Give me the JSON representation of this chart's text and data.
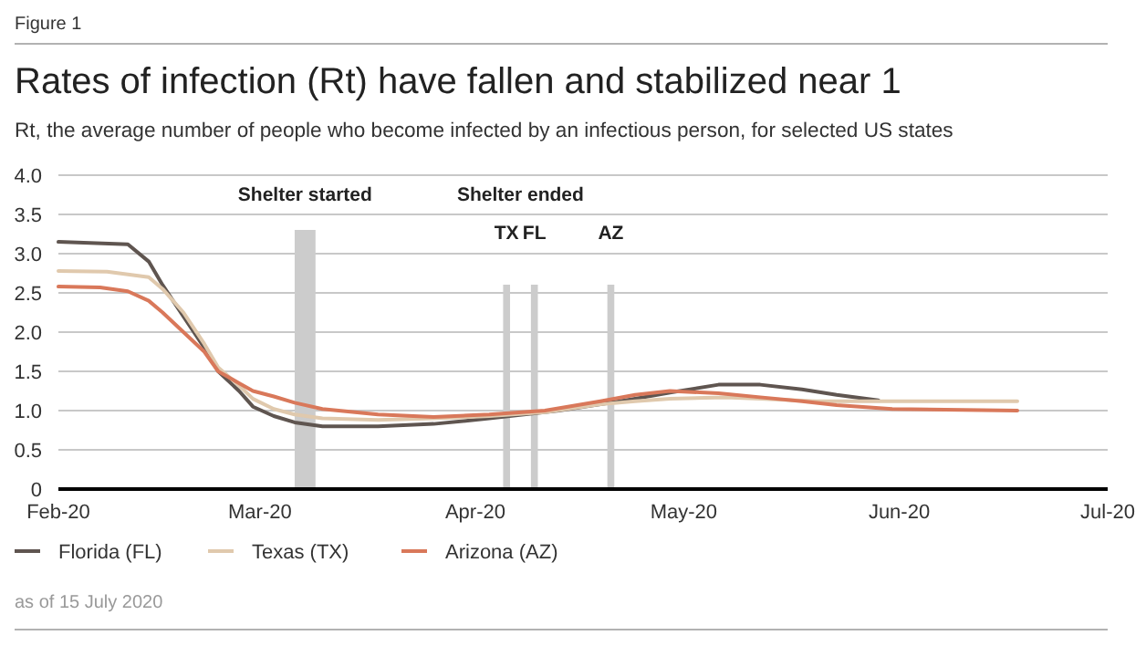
{
  "chart_data": {
    "type": "line",
    "title": "Rates of infection (Rt) have fallen and stabilized near 1",
    "subtitle": "Rt, the average number of people who become infected by an infectious person, for selected US states",
    "annotations": [
      "Figure 1",
      "Shelter ended",
      "as of 15 July 2020"
    ],
    "xlim": [
      "2020-02-01",
      "2020-07-01"
    ],
    "xticks": [
      {
        "value": "2020-02-01",
        "label": "Feb-20"
      },
      {
        "value": "2020-03-01",
        "label": "Mar-20"
      },
      {
        "value": "2020-04-01",
        "label": "Apr-20"
      },
      {
        "value": "2020-05-01",
        "label": "May-20"
      },
      {
        "value": "2020-06-01",
        "label": "Jun-20"
      },
      {
        "value": "2020-07-01",
        "label": "Jul-20"
      }
    ],
    "ylim": [
      0,
      4
    ],
    "yticks": [
      0,
      0.5,
      {
        "value": 1,
        "label": "1.0"
      },
      1.5,
      {
        "value": 2,
        "label": "2.0"
      },
      2.5,
      {
        "value": 3,
        "label": "3.0"
      },
      3.5,
      {
        "value": 4,
        "label": "4.0"
      }
    ],
    "grid": "y",
    "legend": "bottom",
    "line_style": "solid",
    "bands": [
      {
        "axis": "x",
        "from": "2020-03-06",
        "to": "2020-03-09",
        "label": "Shelter started",
        "color": "#cccccc"
      },
      {
        "axis": "x",
        "from": "2020-04-05",
        "to": "2020-04-06",
        "label": "TX",
        "color": "#cccccc"
      },
      {
        "axis": "x",
        "from": "2020-04-09",
        "to": "2020-04-10",
        "label": "FL",
        "color": "#cccccc"
      },
      {
        "axis": "x",
        "from": "2020-04-20",
        "to": "2020-04-21",
        "label": "AZ",
        "color": "#cccccc"
      }
    ],
    "series": [
      {
        "name": "Florida (FL)",
        "color": "#5f5550",
        "x": [
          "2020-02-01",
          "2020-02-11",
          "2020-02-14",
          "2020-02-16",
          "2020-02-19",
          "2020-02-22",
          "2020-02-24",
          "2020-02-27",
          "2020-02-29",
          "2020-03-03",
          "2020-03-06",
          "2020-03-10",
          "2020-03-18",
          "2020-03-26",
          "2020-04-03",
          "2020-04-08",
          "2020-04-13",
          "2020-04-19",
          "2020-04-24",
          "2020-04-29",
          "2020-05-06",
          "2020-05-12",
          "2020-05-18",
          "2020-05-23",
          "2020-05-29"
        ],
        "values": [
          3.15,
          3.12,
          2.9,
          2.6,
          2.2,
          1.8,
          1.5,
          1.25,
          1.05,
          0.93,
          0.85,
          0.8,
          0.8,
          0.83,
          0.9,
          0.95,
          1.0,
          1.08,
          1.15,
          1.23,
          1.33,
          1.33,
          1.27,
          1.2,
          1.13
        ]
      },
      {
        "name": "Texas (TX)",
        "color": "#e0c9ad",
        "x": [
          "2020-02-01",
          "2020-02-08",
          "2020-02-14",
          "2020-02-16",
          "2020-02-19",
          "2020-02-22",
          "2020-02-24",
          "2020-02-27",
          "2020-02-29",
          "2020-03-03",
          "2020-03-06",
          "2020-03-10",
          "2020-03-18",
          "2020-03-26",
          "2020-04-03",
          "2020-04-11",
          "2020-04-19",
          "2020-04-24",
          "2020-04-29",
          "2020-05-07",
          "2020-05-12",
          "2020-05-20",
          "2020-05-28",
          "2020-06-18"
        ],
        "values": [
          2.78,
          2.77,
          2.7,
          2.55,
          2.25,
          1.85,
          1.55,
          1.32,
          1.15,
          1.02,
          0.95,
          0.9,
          0.88,
          0.9,
          0.93,
          0.98,
          1.08,
          1.12,
          1.15,
          1.17,
          1.15,
          1.12,
          1.12,
          1.12
        ]
      },
      {
        "name": "Arizona (AZ)",
        "color": "#d9785a",
        "x": [
          "2020-02-01",
          "2020-02-07",
          "2020-02-11",
          "2020-02-14",
          "2020-02-16",
          "2020-02-19",
          "2020-02-22",
          "2020-02-24",
          "2020-02-27",
          "2020-02-29",
          "2020-03-03",
          "2020-03-06",
          "2020-03-10",
          "2020-03-18",
          "2020-03-26",
          "2020-04-03",
          "2020-04-11",
          "2020-04-19",
          "2020-04-24",
          "2020-04-29",
          "2020-05-06",
          "2020-05-12",
          "2020-05-18",
          "2020-05-23",
          "2020-05-31",
          "2020-06-18"
        ],
        "values": [
          2.58,
          2.57,
          2.52,
          2.4,
          2.25,
          2.0,
          1.75,
          1.5,
          1.35,
          1.25,
          1.18,
          1.1,
          1.02,
          0.95,
          0.92,
          0.95,
          1.0,
          1.12,
          1.2,
          1.25,
          1.22,
          1.17,
          1.12,
          1.07,
          1.02,
          1.0
        ]
      }
    ]
  }
}
